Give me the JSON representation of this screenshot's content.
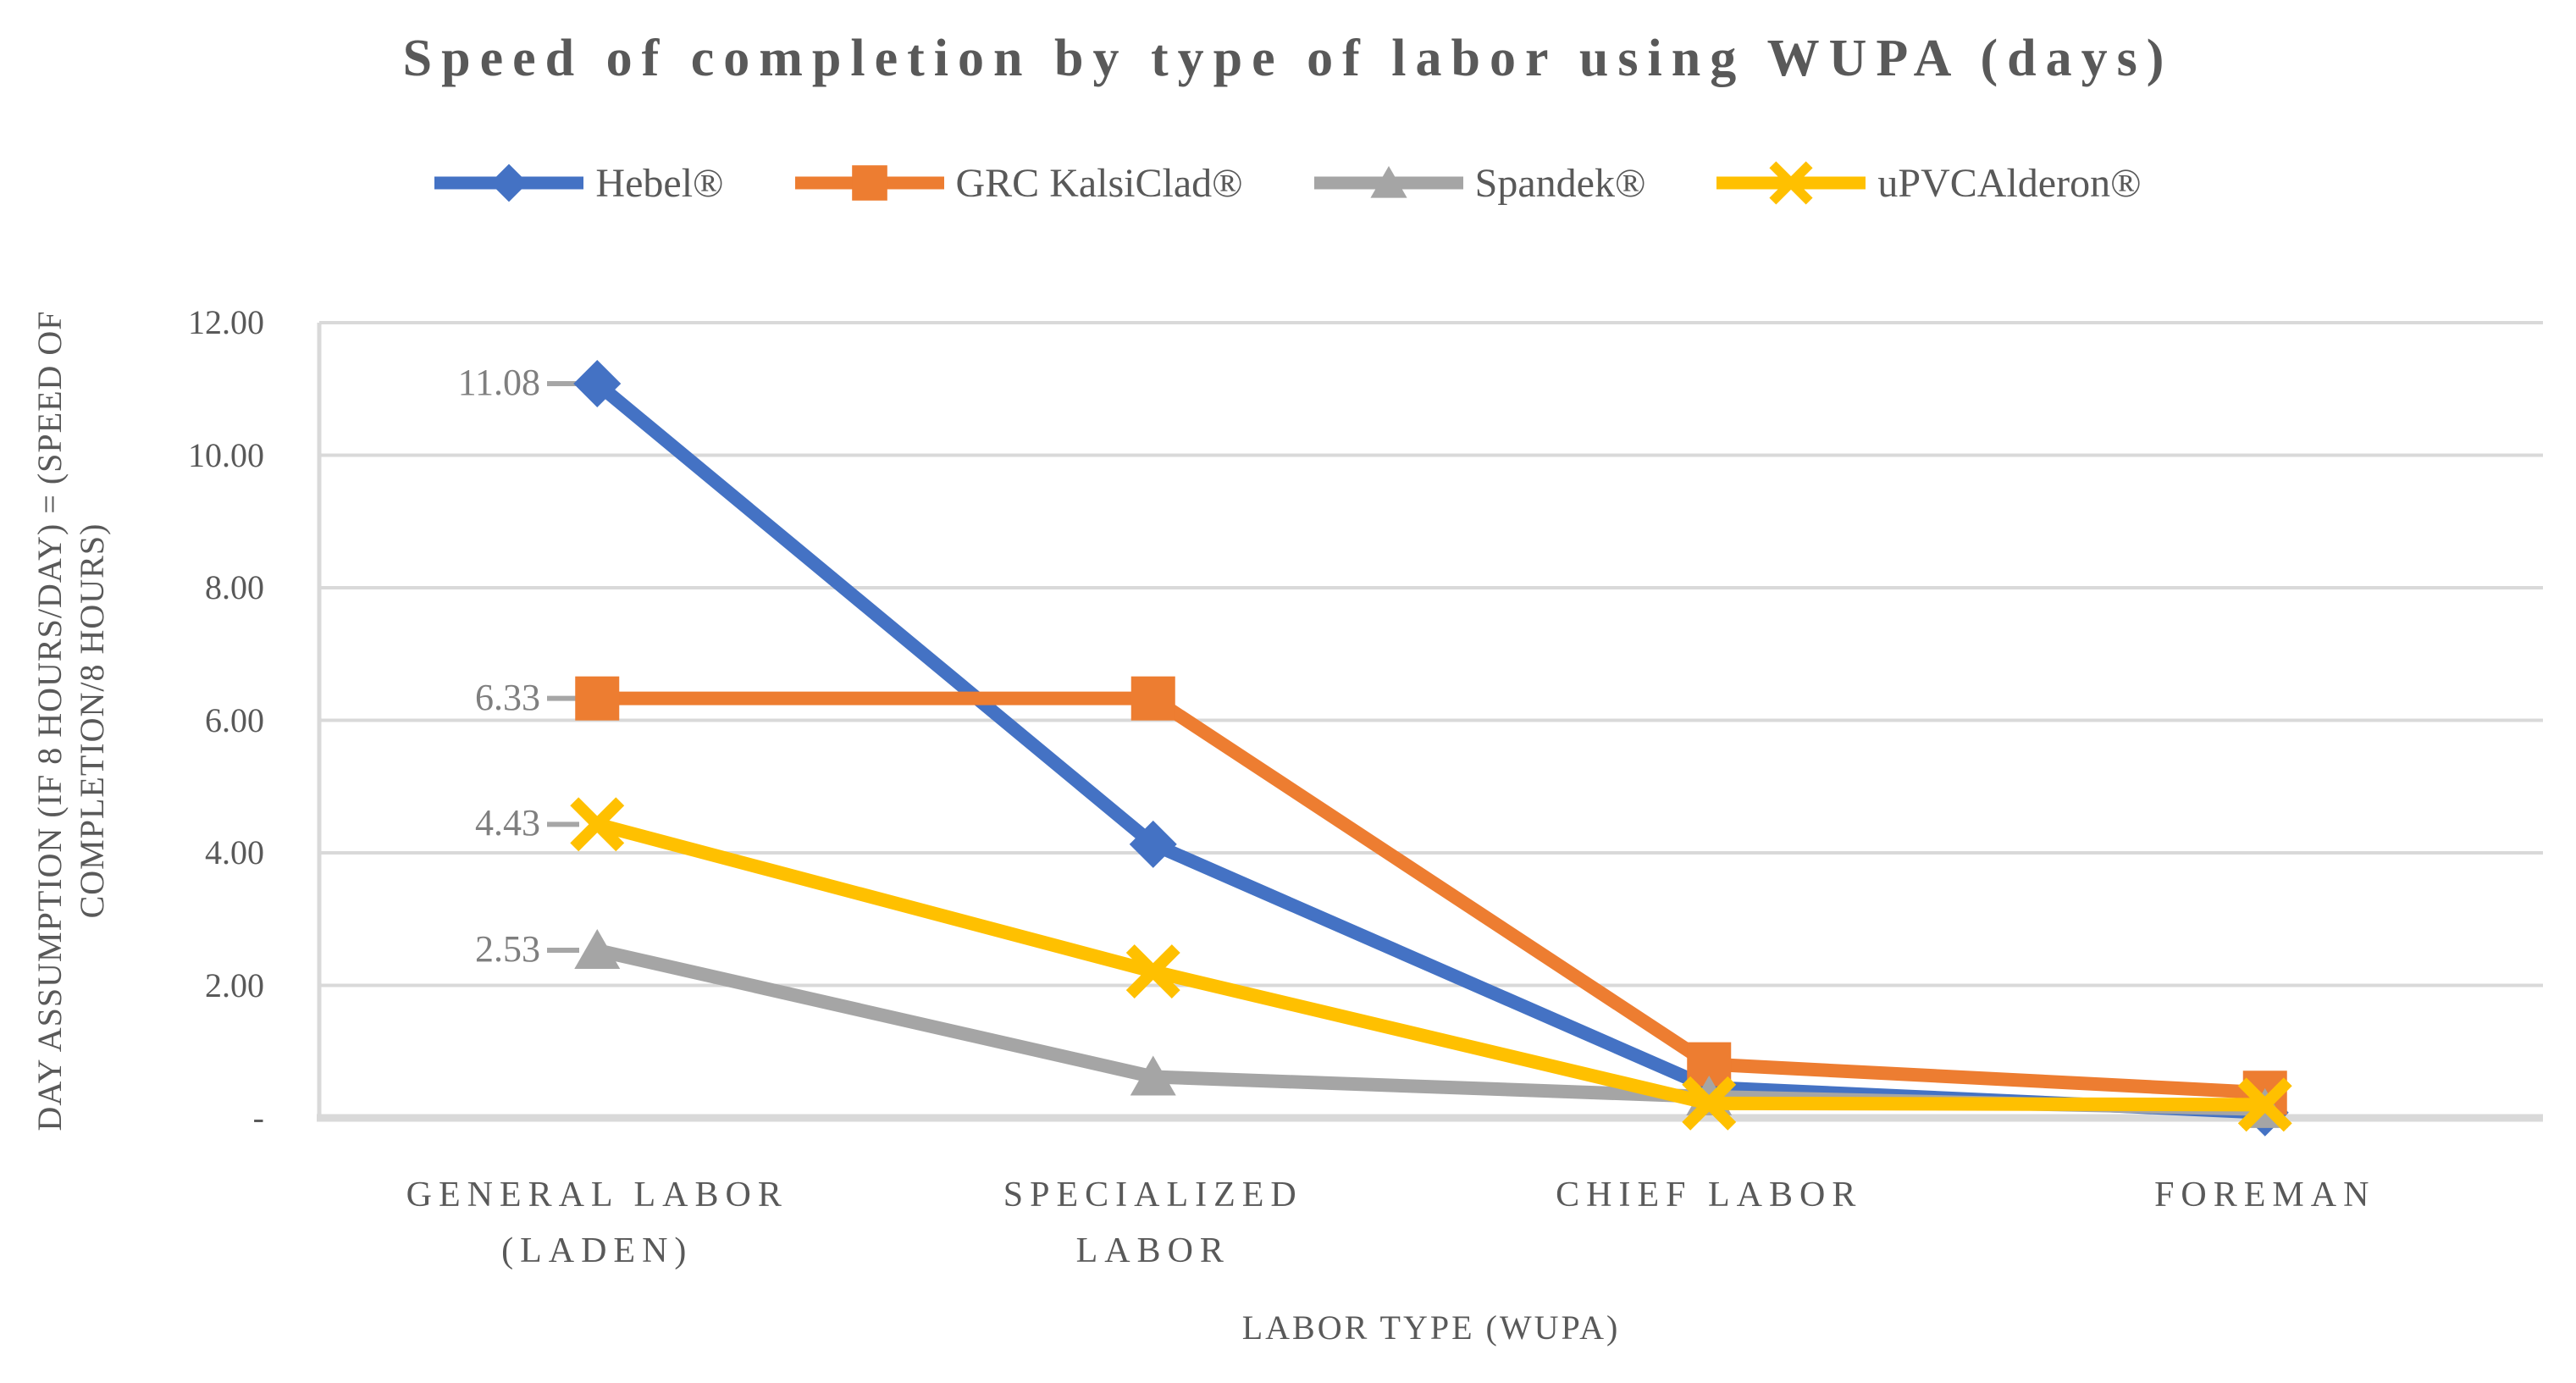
{
  "chart_data": {
    "type": "line",
    "title": "Speed of completion by type of labor using WUPA (days)",
    "xlabel": "LABOR TYPE (WUPA)",
    "ylabel": "DAY ASSUMPTION (IF 8 HOURS/DAY) = (SPEED OF COMPLETION/8 HOURS)",
    "ylabel_lines": [
      "DAY ASSUMPTION (IF 8 HOURS/DAY) = (SPEED OF",
      "COMPLETION/8 HOURS)"
    ],
    "categories": [
      "GENERAL LABOR (LADEN)",
      "SPECIALIZED LABOR",
      "CHIEF LABOR",
      "FOREMAN"
    ],
    "categories_display": [
      "GENERAL LABOR\n(LADEN)",
      "SPECIALIZED\nLABOR",
      "CHIEF LABOR",
      "FOREMAN"
    ],
    "ylim": [
      0,
      12
    ],
    "ytick_step": 2,
    "ytick_labels": [
      "12.00",
      "10.00",
      "8.00",
      "6.00",
      "4.00",
      "2.00",
      "-"
    ],
    "ytick_values": [
      12,
      10,
      8,
      6,
      4,
      2,
      0
    ],
    "grid": true,
    "legend_position": "top",
    "series": [
      {
        "name": "Hebel®",
        "color": "#4472C4",
        "marker": "diamond",
        "values": [
          11.08,
          4.13,
          0.46,
          0.08
        ],
        "data_label": "11.08",
        "labeled_point": 0
      },
      {
        "name": "GRC KalsiClad®",
        "color": "#ED7D31",
        "marker": "square",
        "values": [
          6.33,
          6.33,
          0.81,
          0.38
        ],
        "data_label": "6.33",
        "labeled_point": 0
      },
      {
        "name": "Spandek®",
        "color": "#A5A5A5",
        "marker": "triangle",
        "values": [
          2.53,
          0.62,
          0.32,
          0.13
        ],
        "data_label": "2.53",
        "labeled_point": 0
      },
      {
        "name": "uPVCAlderon®",
        "color": "#FFC000",
        "marker": "x",
        "values": [
          4.43,
          2.21,
          0.22,
          0.2
        ],
        "data_label": "4.43",
        "labeled_point": 0
      }
    ],
    "colors": {
      "gridline": "#D9D9D9",
      "axis_line": "#D9D9D9",
      "axis_text": "#595959",
      "title_text": "#595959",
      "data_label_text": "#7F7F7F",
      "leader_line": "#A6A6A6"
    }
  }
}
